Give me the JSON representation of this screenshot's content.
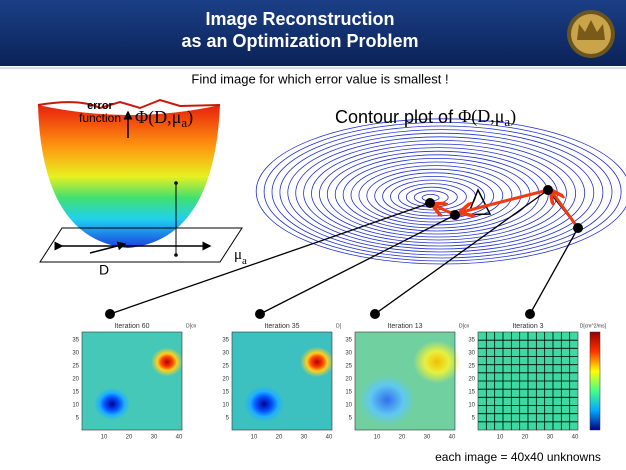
{
  "header": {
    "title_line1": "Image Reconstruction",
    "title_line2": "as an Optimization Problem"
  },
  "subtitle": "Find image for which error value is smallest !",
  "surface": {
    "label_error": "error",
    "label_function": "function",
    "axis_d": "D",
    "axis_mua": {
      "main": "μ",
      "sub": "a"
    },
    "formula": {
      "main": "Φ(D,μ",
      "sub": "a",
      "close": ")"
    }
  },
  "contour": {
    "title": "Contour plot of ",
    "formula": {
      "main": "Φ(D,μ",
      "sub": "a",
      "close": ")"
    }
  },
  "panels": [
    {
      "title": "Iteration 60",
      "unit": "D[cn"
    },
    {
      "title": "Iteration 35",
      "unit": "D["
    },
    {
      "title": "Iteration 13",
      "unit": "D[cn"
    },
    {
      "title": "Iteration 3",
      "unit": "D[cm^2/ms]"
    }
  ],
  "panel_yticks": [
    "35",
    "30",
    "25",
    "20",
    "15",
    "10",
    "5"
  ],
  "panel_xticks": [
    "10",
    "20",
    "30",
    "40"
  ],
  "caption": "each image = 40x40 unknowns"
}
